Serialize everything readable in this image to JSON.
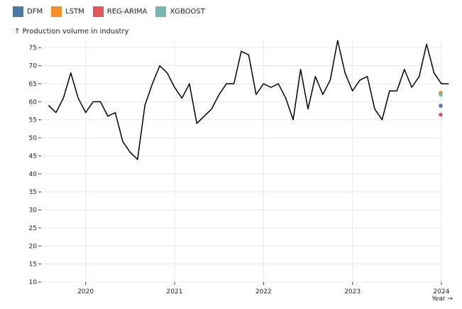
{
  "legend": {
    "items": [
      {
        "label": "DFM",
        "color": "#4e79a7"
      },
      {
        "label": "LSTM",
        "color": "#f28e2b"
      },
      {
        "label": "REG-ARIMA",
        "color": "#e15759"
      },
      {
        "label": "XGBOOST",
        "color": "#76b7b2"
      }
    ]
  },
  "chart_data": {
    "type": "line",
    "ylabel": "↑ Production volume in industry",
    "xlabel": "Year →",
    "ylim": [
      10,
      77
    ],
    "xlim": [
      "2019-08",
      "2024-01"
    ],
    "y_ticks": [
      10,
      15,
      20,
      25,
      30,
      35,
      40,
      45,
      50,
      55,
      60,
      65,
      70,
      75
    ],
    "x_ticks": [
      "2020",
      "2021",
      "2022",
      "2023",
      "2024"
    ],
    "grid": true,
    "legend_position": "top-left",
    "series": [
      {
        "color": "#000000",
        "points": [
          [
            "2019-08",
            59
          ],
          [
            "2019-09",
            57
          ],
          [
            "2019-10",
            61
          ],
          [
            "2019-11",
            68
          ],
          [
            "2019-12",
            61
          ],
          [
            "2020-01",
            57
          ],
          [
            "2020-02",
            60
          ],
          [
            "2020-03",
            60
          ],
          [
            "2020-04",
            56
          ],
          [
            "2020-05",
            57
          ],
          [
            "2020-06",
            49
          ],
          [
            "2020-07",
            46
          ],
          [
            "2020-08",
            44
          ],
          [
            "2020-09",
            59
          ],
          [
            "2020-10",
            65
          ],
          [
            "2020-11",
            70
          ],
          [
            "2020-12",
            68
          ],
          [
            "2021-01",
            64
          ],
          [
            "2021-02",
            61
          ],
          [
            "2021-03",
            65
          ],
          [
            "2021-04",
            54
          ],
          [
            "2021-05",
            56
          ],
          [
            "2021-06",
            58
          ],
          [
            "2021-07",
            62
          ],
          [
            "2021-08",
            65
          ],
          [
            "2021-09",
            65
          ],
          [
            "2021-10",
            74
          ],
          [
            "2021-11",
            73
          ],
          [
            "2021-12",
            62
          ],
          [
            "2022-01",
            65
          ],
          [
            "2022-02",
            64
          ],
          [
            "2022-03",
            65
          ],
          [
            "2022-04",
            61
          ],
          [
            "2022-05",
            55
          ],
          [
            "2022-06",
            69
          ],
          [
            "2022-07",
            58
          ],
          [
            "2022-08",
            67
          ],
          [
            "2022-09",
            62
          ],
          [
            "2022-10",
            66
          ],
          [
            "2022-11",
            77
          ],
          [
            "2022-12",
            68
          ],
          [
            "2023-01",
            63
          ],
          [
            "2023-02",
            66
          ],
          [
            "2023-03",
            67
          ],
          [
            "2023-04",
            58
          ],
          [
            "2023-05",
            55
          ],
          [
            "2023-06",
            63
          ],
          [
            "2023-07",
            63
          ],
          [
            "2023-08",
            69
          ],
          [
            "2023-09",
            64
          ],
          [
            "2023-10",
            67
          ],
          [
            "2023-11",
            76
          ],
          [
            "2023-12",
            68
          ],
          [
            "2024-01",
            65
          ],
          [
            "2024-02",
            65
          ]
        ]
      }
    ],
    "forecasts": [
      {
        "name": "DFM",
        "x": "2024-01",
        "y": 58.9,
        "color": "#4e79a7"
      },
      {
        "name": "LSTM",
        "x": "2024-01",
        "y": 62.5,
        "color": "#f28e2b"
      },
      {
        "name": "REG-ARIMA",
        "x": "2024-01",
        "y": 56.4,
        "color": "#e15759"
      },
      {
        "name": "XGBOOST",
        "x": "2024-01",
        "y": 62.0,
        "color": "#76b7b2"
      }
    ]
  }
}
